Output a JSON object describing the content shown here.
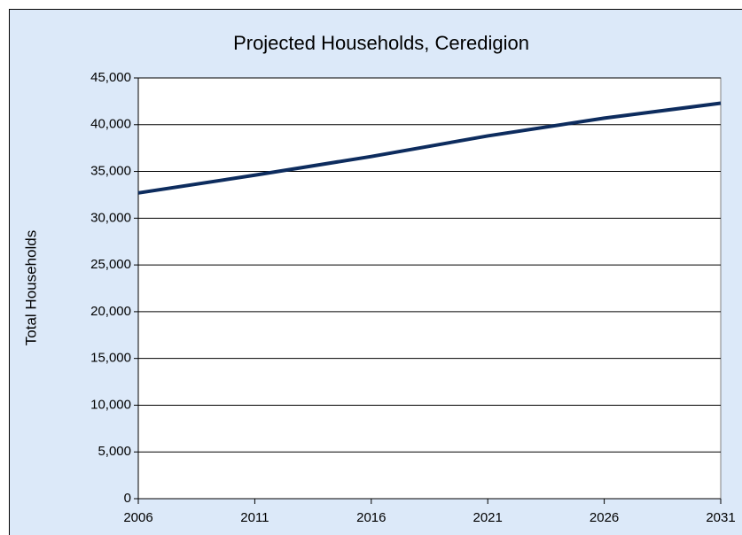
{
  "chart_data": {
    "type": "line",
    "title": "Projected Households, Ceredigion",
    "y_label": "Total Households",
    "x": [
      2006,
      2011,
      2016,
      2021,
      2026,
      2031
    ],
    "series": [
      {
        "name": "Households",
        "color": "#0d2c5e",
        "values": [
          32700,
          34600,
          36600,
          38800,
          40700,
          42300
        ]
      }
    ],
    "xlim": [
      2006,
      2031
    ],
    "xticks": [
      2006,
      2011,
      2016,
      2021,
      2026,
      2031
    ],
    "ylim": [
      0,
      45000
    ],
    "yticks": [
      0,
      {
        "value": 5000,
        "label": "5,000"
      },
      {
        "value": 10000,
        "label": "10,000"
      },
      {
        "value": 15000,
        "label": "15,000"
      },
      {
        "value": 20000,
        "label": "20,000"
      },
      {
        "value": 25000,
        "label": "25,000"
      },
      {
        "value": 30000,
        "label": "30,000"
      },
      {
        "value": 35000,
        "label": "35,000"
      },
      {
        "value": 40000,
        "label": "40,000"
      },
      {
        "value": 45000,
        "label": "45,000"
      }
    ],
    "grid": true
  }
}
